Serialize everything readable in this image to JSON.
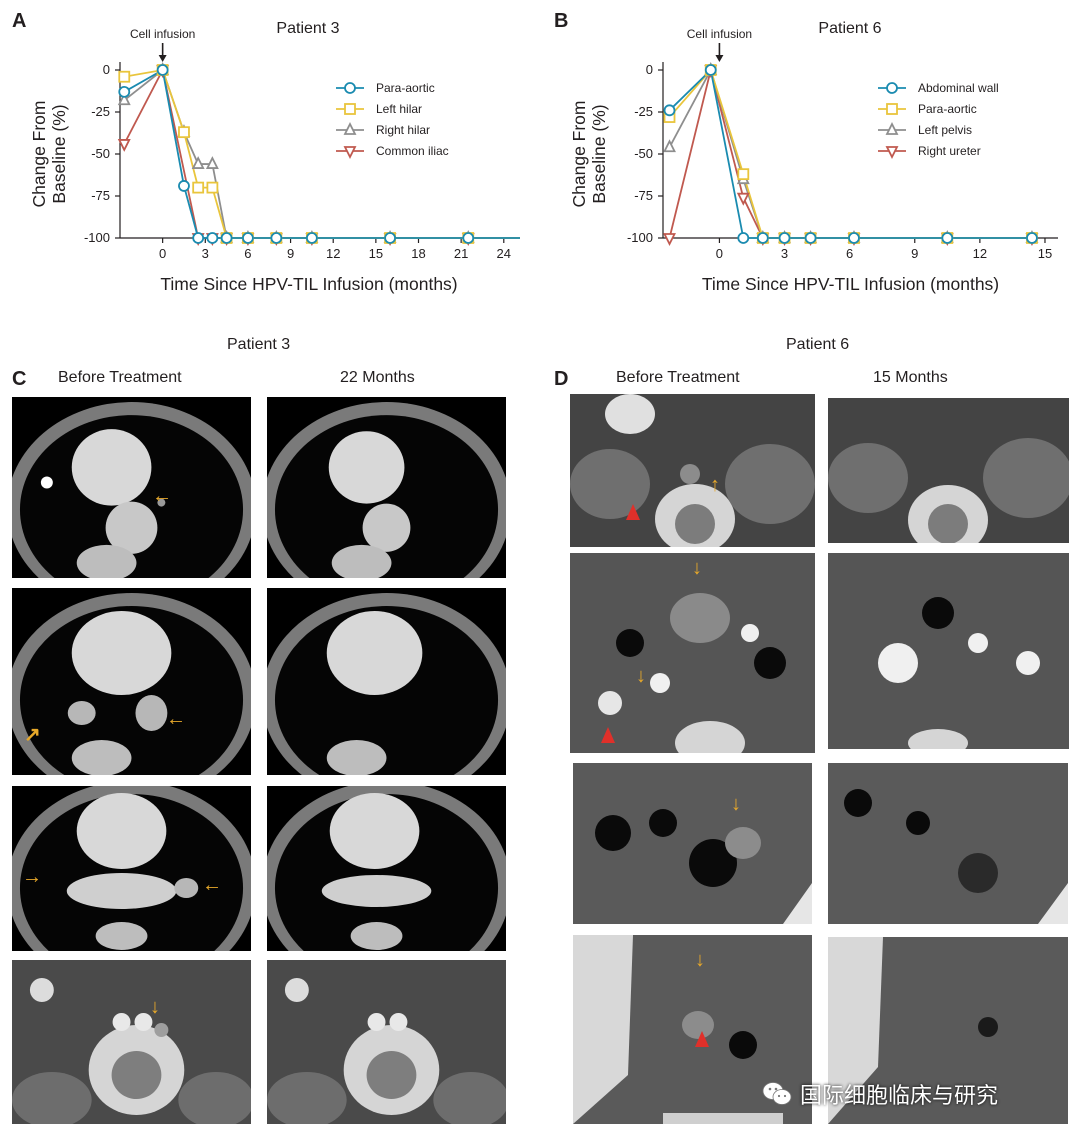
{
  "panels": {
    "a": {
      "letter": "A",
      "title": "Patient 3",
      "annotation": "Cell infusion"
    },
    "b": {
      "letter": "B",
      "title": "Patient 6",
      "annotation": "Cell infusion"
    },
    "c": {
      "letter": "C",
      "title": "Patient 3",
      "before": "Before Treatment",
      "after": "22 Months"
    },
    "d": {
      "letter": "D",
      "title": "Patient 6",
      "before": "Before Treatment",
      "after": "15 Months"
    }
  },
  "watermark": {
    "text": "国际细胞临床与研究"
  },
  "colors": {
    "teal": "#1a8bb0",
    "yellow": "#e9c53c",
    "gray": "#8e8e8e",
    "red": "#c0594f",
    "arrow": "#e8a92a",
    "arrowhead_red": "#e0302a"
  },
  "chart_data": [
    {
      "type": "line",
      "title": "Patient 3",
      "xlabel": "Time Since HPV-TIL Infusion (months)",
      "ylabel": "Change From Baseline (%)",
      "xticks": [
        0,
        3,
        6,
        9,
        12,
        15,
        18,
        21,
        24
      ],
      "yticks": [
        0,
        -25,
        -50,
        -75,
        -100
      ],
      "xlim": [
        -3,
        25
      ],
      "ylim": [
        -100,
        0
      ],
      "annotation": {
        "text": "Cell infusion",
        "x": 0
      },
      "legend_position": "top-right",
      "series": [
        {
          "name": "Para-aortic",
          "marker": "circle",
          "color": "#1a8bb0",
          "x": [
            -2.7,
            0,
            1.5,
            2.5,
            3.5,
            4.5,
            6,
            8,
            10.5,
            16,
            21.5,
            27.2
          ],
          "y": [
            -13,
            0,
            -69,
            -100,
            -100,
            -100,
            -100,
            -100,
            -100,
            -100,
            -100,
            -100
          ]
        },
        {
          "name": "Left hilar",
          "marker": "square",
          "color": "#e9c53c",
          "x": [
            -2.7,
            0,
            1.5,
            2.5,
            3.5,
            4.5,
            6,
            8,
            10.5,
            16,
            21.5,
            27.2
          ],
          "y": [
            -4,
            0,
            -37,
            -70,
            -70,
            -100,
            -100,
            -100,
            -100,
            -100,
            -100,
            -100
          ]
        },
        {
          "name": "Right hilar",
          "marker": "triangle-up",
          "color": "#8e8e8e",
          "x": [
            -2.7,
            0,
            1.5,
            2.5,
            3.5,
            4.5,
            6,
            8,
            10.5,
            16,
            21.5,
            27.2
          ],
          "y": [
            -18,
            0,
            -37,
            -56,
            -56,
            -100,
            -100,
            -100,
            -100,
            -100,
            -100,
            -100
          ]
        },
        {
          "name": "Common iliac",
          "marker": "triangle-down",
          "color": "#c0594f",
          "x": [
            -2.7,
            0,
            2.5,
            3.5,
            4.5,
            6,
            8,
            10.5,
            16,
            21.5,
            27.2
          ],
          "y": [
            -44,
            0,
            -100,
            -100,
            -100,
            -100,
            -100,
            -100,
            -100,
            -100,
            -100
          ]
        }
      ]
    },
    {
      "type": "line",
      "title": "Patient 6",
      "xlabel": "Time Since HPV-TIL Infusion (months)",
      "ylabel": "Change From Baseline (%)",
      "xticks": [
        0,
        3,
        6,
        9,
        12,
        15
      ],
      "yticks": [
        0,
        -25,
        -50,
        -75,
        -100
      ],
      "xlim": [
        -2.6,
        15.6
      ],
      "ylim": [
        -100,
        0
      ],
      "annotation": {
        "text": "Cell infusion",
        "x": 0
      },
      "legend_position": "top-right",
      "series": [
        {
          "name": "Abdominal wall",
          "marker": "circle",
          "color": "#1a8bb0",
          "x": [
            -2.3,
            -0.4,
            1.1,
            2.0,
            3.0,
            4.2,
            6.2,
            10.5,
            14.4
          ],
          "y": [
            -24,
            0,
            -100,
            -100,
            -100,
            -100,
            -100,
            -100,
            -100
          ]
        },
        {
          "name": "Para-aortic",
          "marker": "square",
          "color": "#e9c53c",
          "x": [
            -2.3,
            -0.4,
            1.1,
            2.0,
            3.0,
            4.2,
            6.2,
            10.5,
            14.4
          ],
          "y": [
            -28,
            0,
            -62,
            -100,
            -100,
            -100,
            -100,
            -100,
            -100
          ]
        },
        {
          "name": "Left pelvis",
          "marker": "triangle-up",
          "color": "#8e8e8e",
          "x": [
            -2.3,
            -0.4,
            1.1,
            2.0,
            3.0,
            4.2,
            6.2,
            10.5,
            14.4
          ],
          "y": [
            -46,
            0,
            -65,
            -100,
            -100,
            -100,
            -100,
            -100,
            -100
          ]
        },
        {
          "name": "Right ureter",
          "marker": "triangle-down",
          "color": "#c0594f",
          "x": [
            -2.3,
            -0.4,
            1.1,
            2.0,
            3.0,
            4.2,
            6.2,
            10.5,
            14.4
          ],
          "y": [
            -100,
            0,
            -76,
            -100,
            -100,
            -100,
            -100,
            -100,
            -100
          ]
        }
      ]
    }
  ]
}
